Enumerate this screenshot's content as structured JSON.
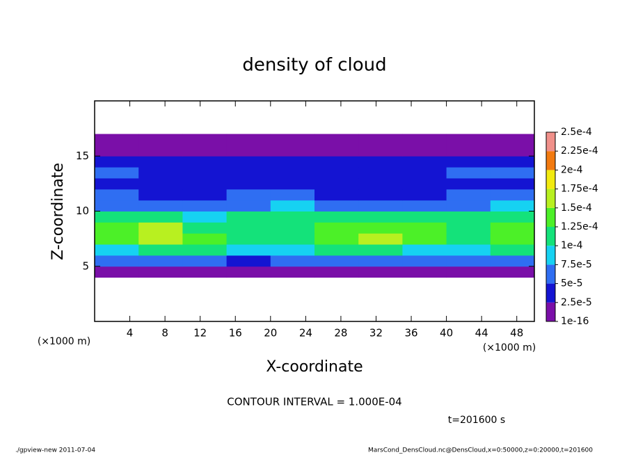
{
  "chart_data": {
    "type": "heatmap",
    "title": "density of cloud",
    "x_label": "X-coordinate",
    "y_label": "Z-coordinate",
    "x_unit": "(×1000 m)",
    "y_unit": "(×1000 m)",
    "contour_note": "CONTOUR INTERVAL = 1.000E-04",
    "time_note": "t=201600 s",
    "footer_left": "./gpview-new  2011-07-04",
    "footer_right": "MarsCond_DensCloud.nc@DensCloud,x=0:50000,z=0:20000,t=201600",
    "xlim": [
      0,
      50
    ],
    "ylim": [
      0,
      20
    ],
    "xticks": [
      4,
      8,
      12,
      16,
      20,
      24,
      28,
      32,
      36,
      40,
      44,
      48
    ],
    "yticks": [
      5,
      10,
      15
    ],
    "x": [
      2.5,
      7.5,
      12.5,
      17.5,
      22.5,
      27.5,
      32.5,
      37.5,
      42.5,
      47.5
    ],
    "z": [
      0.5,
      1.5,
      2.5,
      3.5,
      4.5,
      5.5,
      6.5,
      7.5,
      8.5,
      9.5,
      10.5,
      11.5,
      12.5,
      13.5,
      14.5,
      15.5,
      16.5,
      17.5,
      18.5,
      19.5
    ],
    "values": [
      [
        null,
        null,
        null,
        null,
        null,
        null,
        null,
        null,
        null,
        null
      ],
      [
        null,
        null,
        null,
        null,
        null,
        null,
        null,
        null,
        null,
        null
      ],
      [
        null,
        null,
        null,
        null,
        null,
        null,
        null,
        null,
        null,
        null
      ],
      [
        null,
        null,
        null,
        null,
        null,
        null,
        null,
        null,
        null,
        null
      ],
      [
        1e-05,
        1e-05,
        1e-05,
        2e-05,
        1e-05,
        1e-05,
        1e-05,
        1e-05,
        1e-05,
        1e-05
      ],
      [
        5e-05,
        5.5e-05,
        6e-05,
        4e-05,
        6e-05,
        6e-05,
        6e-05,
        5.5e-05,
        6e-05,
        6e-05
      ],
      [
        9e-05,
        0.00011,
        0.0001,
        8e-05,
        9e-05,
        0.0001,
        0.000105,
        9.5e-05,
        9e-05,
        0.0001
      ],
      [
        0.00013,
        0.00016,
        0.00014,
        0.00011,
        0.00012,
        0.00013,
        0.00016,
        0.00013,
        0.00012,
        0.00013
      ],
      [
        0.00013,
        0.00015,
        0.00012,
        0.000115,
        0.00012,
        0.00013,
        0.000145,
        0.000125,
        0.00012,
        0.000125
      ],
      [
        0.00011,
        0.000105,
        9e-05,
        0.0001,
        0.000105,
        0.0001,
        0.0001,
        0.0001,
        0.000105,
        0.00011
      ],
      [
        7e-05,
        6e-05,
        6e-05,
        7e-05,
        8e-05,
        6e-05,
        6e-05,
        6e-05,
        7e-05,
        8e-05
      ],
      [
        5e-05,
        4e-05,
        4e-05,
        5e-05,
        5e-05,
        4.5e-05,
        4e-05,
        4e-05,
        5e-05,
        5e-05
      ],
      [
        4.5e-05,
        4e-05,
        3.5e-05,
        4e-05,
        4.5e-05,
        4e-05,
        4e-05,
        4e-05,
        4.5e-05,
        4.5e-05
      ],
      [
        5e-05,
        4.5e-05,
        4e-05,
        4e-05,
        4.5e-05,
        4e-05,
        4.5e-05,
        4.5e-05,
        5e-05,
        5e-05
      ],
      [
        4.5e-05,
        4.5e-05,
        4e-05,
        4e-05,
        4e-05,
        3.5e-05,
        4e-05,
        4e-05,
        4.5e-05,
        4.5e-05
      ],
      [
        2e-05,
        2e-05,
        2e-05,
        2e-05,
        2e-05,
        2e-05,
        2e-05,
        2e-05,
        2e-05,
        2e-05
      ],
      [
        1e-05,
        1e-05,
        1e-05,
        1e-05,
        1e-05,
        1e-05,
        1e-05,
        1e-05,
        1e-05,
        1e-05
      ],
      [
        null,
        null,
        null,
        null,
        null,
        null,
        null,
        null,
        null,
        null
      ],
      [
        null,
        null,
        null,
        null,
        null,
        null,
        null,
        null,
        null,
        null
      ],
      [
        null,
        null,
        null,
        null,
        null,
        null,
        null,
        null,
        null,
        null
      ]
    ],
    "levels": [
      {
        "value": 1e-16,
        "label": "1e-16"
      },
      {
        "value": 2.5e-05,
        "label": "2.5e-5"
      },
      {
        "value": 5e-05,
        "label": "5e-5"
      },
      {
        "value": 7.5e-05,
        "label": "7.5e-5"
      },
      {
        "value": 0.0001,
        "label": "1e-4"
      },
      {
        "value": 0.000125,
        "label": "1.25e-4"
      },
      {
        "value": 0.00015,
        "label": "1.5e-4"
      },
      {
        "value": 0.000175,
        "label": "1.75e-4"
      },
      {
        "value": 0.0002,
        "label": "2e-4"
      },
      {
        "value": 0.000225,
        "label": "2.25e-4"
      },
      {
        "value": 0.00025,
        "label": "2.5e-4"
      }
    ],
    "colors": [
      "#7a0fa8",
      "#1414d2",
      "#2f6ef2",
      "#16d2f2",
      "#14e27a",
      "#4cf028",
      "#b8f020",
      "#f2ea10",
      "#f27a10",
      "#f0908a"
    ]
  }
}
